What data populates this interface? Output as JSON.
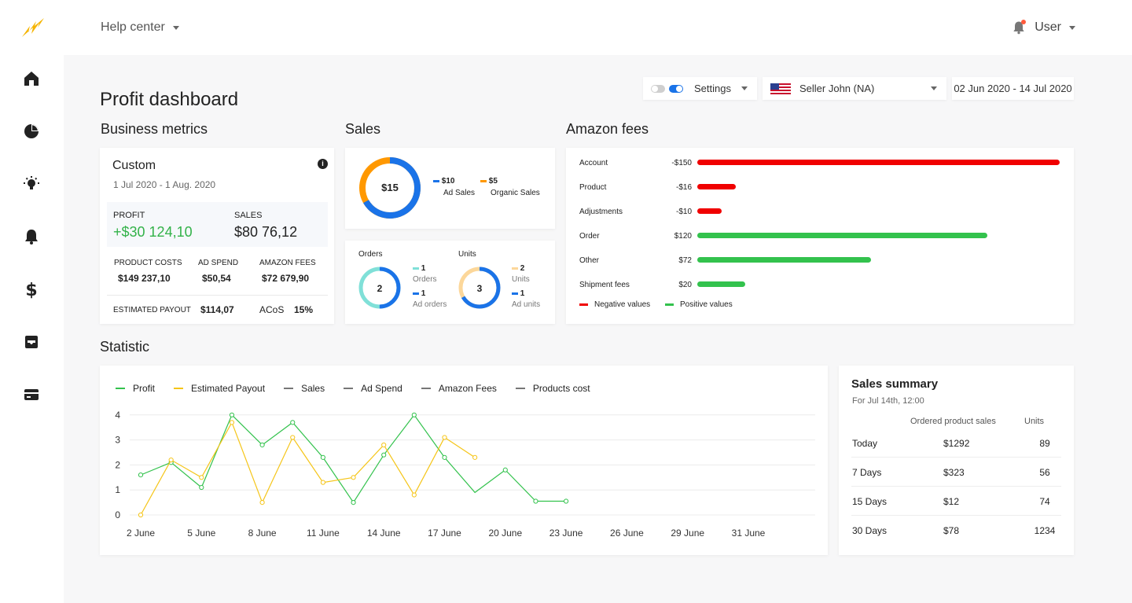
{
  "header": {
    "help_label": "Help center",
    "user_label": "User"
  },
  "page": {
    "title": "Profit dashboard"
  },
  "controls": {
    "settings_label": "Settings",
    "seller_label": "Seller John (NA)",
    "date_range": "02 Jun 2020 - 14 Jul 2020"
  },
  "sections": {
    "business": "Business metrics",
    "sales": "Sales",
    "fees": "Amazon fees",
    "statistic": "Statistic"
  },
  "business": {
    "title": "Custom",
    "date": "1 Jul 2020 - 1 Aug. 2020",
    "profit_label": "PROFIT",
    "profit_value": "+$30 124,10",
    "sales_label": "SALES",
    "sales_value": "$80 76,12",
    "product_costs_label": "PRODUCT COSTS",
    "product_costs_value": "$149 237,10",
    "ad_spend_label": "AD SPEND",
    "ad_spend_value": "$50,54",
    "amazon_fees_label": "AMAZON FEES",
    "amazon_fees_value": "$72 679,90",
    "payout_label": "ESTIMATED PAYOUT",
    "payout_value": "$114,07",
    "acos_label": "ACoS",
    "acos_value": "15%",
    "info_icon": "i"
  },
  "sales_donut": {
    "center": "$15",
    "ad_value": "$10",
    "ad_label": "Ad Sales",
    "organic_value": "$5",
    "organic_label": "Organic Sales",
    "ad_fraction": 0.667,
    "colors": {
      "ad": "#1a73e8",
      "organic": "#ff9800"
    }
  },
  "orders": {
    "title": "Orders",
    "center": "2",
    "orders_value": "1",
    "orders_label": "Orders",
    "ad_value": "1",
    "ad_label": "Ad orders",
    "ad_fraction": 0.5,
    "colors": {
      "organic": "#80e0d8",
      "ad": "#1a73e8"
    }
  },
  "units": {
    "title": "Units",
    "center": "3",
    "units_value": "2",
    "units_label": "Units",
    "ad_value": "1",
    "ad_label": "Ad units",
    "ad_fraction": 0.667,
    "colors": {
      "organic": "#fcd79a",
      "ad": "#1a73e8"
    }
  },
  "fees": {
    "items": [
      {
        "label": "Account",
        "value": "-$150",
        "amount": -150
      },
      {
        "label": "Product",
        "value": "-$16",
        "amount": -16
      },
      {
        "label": "Adjustments",
        "value": "-$10",
        "amount": -10
      },
      {
        "label": "Order",
        "value": "$120",
        "amount": 120
      },
      {
        "label": "Other",
        "value": "$72",
        "amount": 72
      },
      {
        "label": "Shipment fees",
        "value": "$20",
        "amount": 20
      }
    ],
    "legend_negative": "Negative values",
    "legend_positive": "Positive values",
    "colors": {
      "negative": "#f00000",
      "positive": "#33c24d"
    }
  },
  "statistic": {
    "legend": [
      {
        "label": "Profit",
        "color": "#33c24d"
      },
      {
        "label": "Estimated Payout",
        "color": "#f5c518"
      },
      {
        "label": "Sales",
        "color": "#777777"
      },
      {
        "label": "Ad Spend",
        "color": "#777777"
      },
      {
        "label": "Amazon Fees",
        "color": "#777777"
      },
      {
        "label": "Products cost",
        "color": "#777777"
      }
    ]
  },
  "chart_data": {
    "type": "line",
    "x_ticks": [
      "2 June",
      "5 June",
      "8 June",
      "11 June",
      "14 June",
      "17 June",
      "20 June",
      "23 June",
      "26 June",
      "29 June",
      "31 June"
    ],
    "y_ticks": [
      "0",
      "1",
      "2",
      "3",
      "4"
    ],
    "ylim": [
      0,
      4
    ],
    "series": [
      {
        "name": "Profit",
        "color": "#33c24d",
        "points": [
          [
            0,
            1.6
          ],
          [
            0.5,
            2.1
          ],
          [
            1,
            1.1
          ],
          [
            1.5,
            4.0
          ],
          [
            2,
            2.8
          ],
          [
            2.5,
            3.7
          ],
          [
            3,
            2.3
          ],
          [
            3.5,
            0.5
          ],
          [
            4,
            2.4
          ],
          [
            4.5,
            4.0
          ],
          [
            5,
            2.3
          ],
          [
            5.5,
            0.9
          ],
          [
            6,
            1.8
          ],
          [
            6.5,
            0.55
          ],
          [
            7,
            0.55
          ]
        ],
        "markers": [
          0,
          0.5,
          1,
          1.5,
          2,
          2.5,
          3,
          3.5,
          4,
          4.5,
          5,
          6,
          6.5,
          7
        ]
      },
      {
        "name": "Estimated Payout",
        "color": "#f5c518",
        "points": [
          [
            0,
            0
          ],
          [
            0.5,
            2.2
          ],
          [
            1,
            1.5
          ],
          [
            1.5,
            3.7
          ],
          [
            2,
            0.5
          ],
          [
            2.5,
            3.1
          ],
          [
            3,
            1.3
          ],
          [
            3.5,
            1.5
          ],
          [
            4,
            2.8
          ],
          [
            4.5,
            0.8
          ],
          [
            5,
            3.1
          ],
          [
            5.5,
            2.3
          ]
        ],
        "markers": [
          0,
          0.5,
          1,
          1.5,
          2,
          2.5,
          3,
          3.5,
          4,
          4.5,
          5,
          5.5
        ]
      }
    ]
  },
  "sales_summary": {
    "title": "Sales summary",
    "subtitle": "For Jul 14th, 12:00",
    "col_sales": "Ordered product sales",
    "col_units": "Units",
    "rows": [
      {
        "period": "Today",
        "sales": "$1292",
        "units": "89"
      },
      {
        "period": "7 Days",
        "sales": "$323",
        "units": "56"
      },
      {
        "period": "15 Days",
        "sales": "$12",
        "units": "74"
      },
      {
        "period": "30 Days",
        "sales": "$78",
        "units": "1234"
      }
    ]
  }
}
